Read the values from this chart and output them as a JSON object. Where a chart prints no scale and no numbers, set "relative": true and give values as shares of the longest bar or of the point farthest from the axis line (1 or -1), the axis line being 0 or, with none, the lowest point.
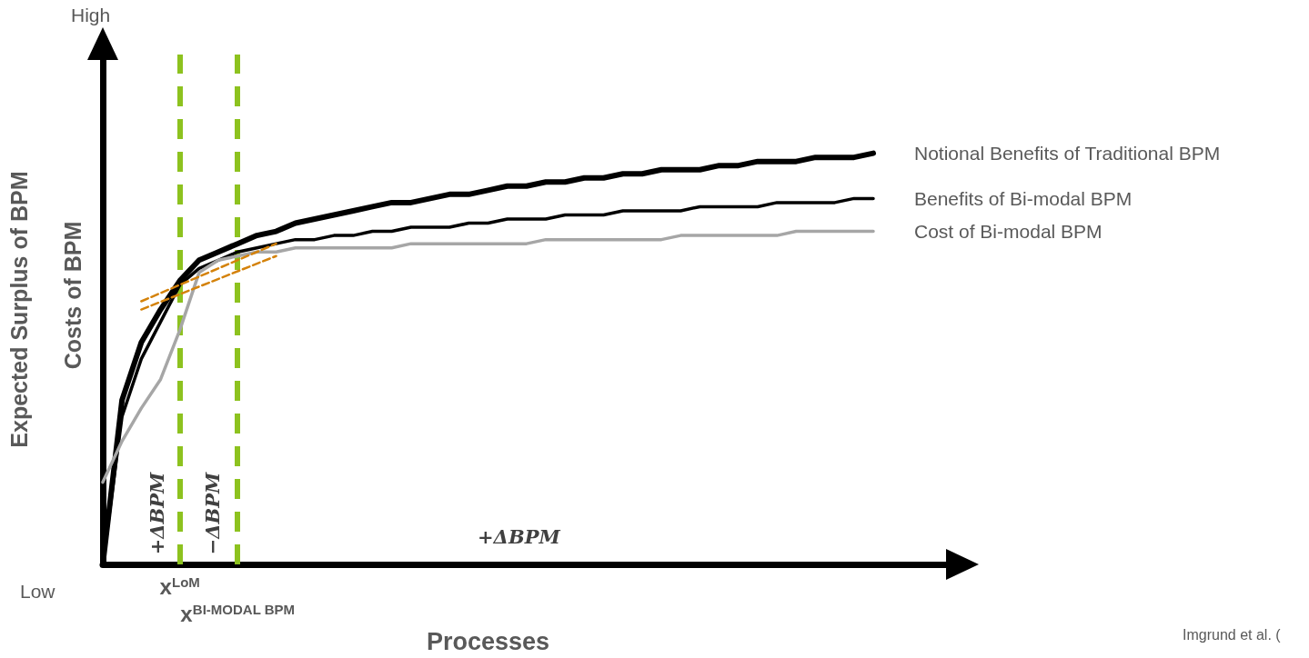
{
  "chart_data": {
    "type": "line",
    "relative": true,
    "xlabel": "Processes",
    "ylabel": "Expected Surplus of BPM",
    "grid": false,
    "legend": false,
    "marker": "none",
    "categories": [
      null,
      null,
      null,
      null,
      "x$^{LoM}$",
      null,
      null,
      "x$^{BI-MODAL BPM}$",
      null,
      null,
      null,
      null,
      null,
      null,
      null,
      null,
      null,
      null,
      null,
      null,
      null,
      null,
      null,
      null,
      null,
      null,
      null,
      null,
      null,
      null,
      null,
      null,
      null,
      null,
      null,
      null,
      null,
      null,
      null,
      null,
      null
    ],
    "series": [
      {
        "name": "Notional Benefits of Traditional BPM",
        "color": "#000000",
        "values": [
          0,
          0.4,
          0.54,
          0.62,
          0.69,
          0.74,
          0.76,
          0.78,
          0.8,
          0.81,
          0.83,
          0.84,
          0.85,
          0.86,
          0.87,
          0.88,
          0.88,
          0.89,
          0.9,
          0.9,
          0.91,
          0.92,
          0.92,
          0.93,
          0.93,
          0.94,
          0.94,
          0.95,
          0.95,
          0.96,
          0.96,
          0.96,
          0.97,
          0.97,
          0.98,
          0.98,
          0.98,
          0.99,
          0.99,
          0.99,
          1
        ]
      },
      {
        "name": "Benefits of Bi-modal BPM",
        "color": "#000000",
        "values": [
          0,
          0.36,
          0.5,
          0.59,
          0.68,
          0.72,
          0.74,
          0.76,
          0.77,
          0.78,
          0.79,
          0.79,
          0.8,
          0.8,
          0.81,
          0.81,
          0.82,
          0.82,
          0.82,
          0.83,
          0.83,
          0.84,
          0.84,
          0.84,
          0.85,
          0.85,
          0.85,
          0.86,
          0.86,
          0.86,
          0.86,
          0.87,
          0.87,
          0.87,
          0.87,
          0.88,
          0.88,
          0.88,
          0.88,
          0.89,
          0.89
        ]
      },
      {
        "name": "Cost of Bi-modal BPM",
        "color": "#a6a6a6",
        "values": [
          0.2,
          0.3,
          0.38,
          0.45,
          0.57,
          0.71,
          0.74,
          0.75,
          0.76,
          0.76,
          0.77,
          0.77,
          0.77,
          0.77,
          0.77,
          0.77,
          0.78,
          0.78,
          0.78,
          0.78,
          0.78,
          0.78,
          0.78,
          0.79,
          0.79,
          0.79,
          0.79,
          0.79,
          0.79,
          0.79,
          0.8,
          0.8,
          0.8,
          0.8,
          0.8,
          0.8,
          0.81,
          0.81,
          0.81,
          0.81,
          0.81
        ]
      },
      {
        "color": "#d4820a",
        "line_style": "dashed",
        "values": [
          null,
          null,
          0.64,
          null,
          null,
          null,
          null,
          null,
          null,
          0.78,
          null,
          null,
          null,
          null,
          null,
          null,
          null,
          null,
          null,
          null,
          null,
          null,
          null,
          null,
          null,
          null,
          null,
          null,
          null,
          null,
          null,
          null,
          null,
          null,
          null,
          null,
          null,
          null,
          null,
          null,
          null
        ]
      },
      {
        "color": "#d4820a",
        "line_style": "dashed",
        "values": [
          null,
          null,
          0.62,
          null,
          null,
          null,
          null,
          null,
          null,
          0.75,
          null,
          null,
          null,
          null,
          null,
          null,
          null,
          null,
          null,
          null,
          null,
          null,
          null,
          null,
          null,
          null,
          null,
          null,
          null,
          null,
          null,
          null,
          null,
          null,
          null,
          null,
          null,
          null,
          null,
          null,
          null
        ]
      }
    ],
    "ref_lines": [
      {
        "axis": "x",
        "value": "x$^{LoM}$",
        "color": "#8dc21f",
        "line_style": "dashed"
      },
      {
        "axis": "x",
        "value": "x$^{BI-MODAL BPM}$",
        "color": "#8dc21f",
        "line_style": "dashed"
      }
    ],
    "annotations": [
      "High",
      "Low",
      "+ΔBPM",
      "−ΔBPM",
      "+ΔBPM",
      "Costs of BPM",
      "Imgrund et al. ("
    ]
  }
}
